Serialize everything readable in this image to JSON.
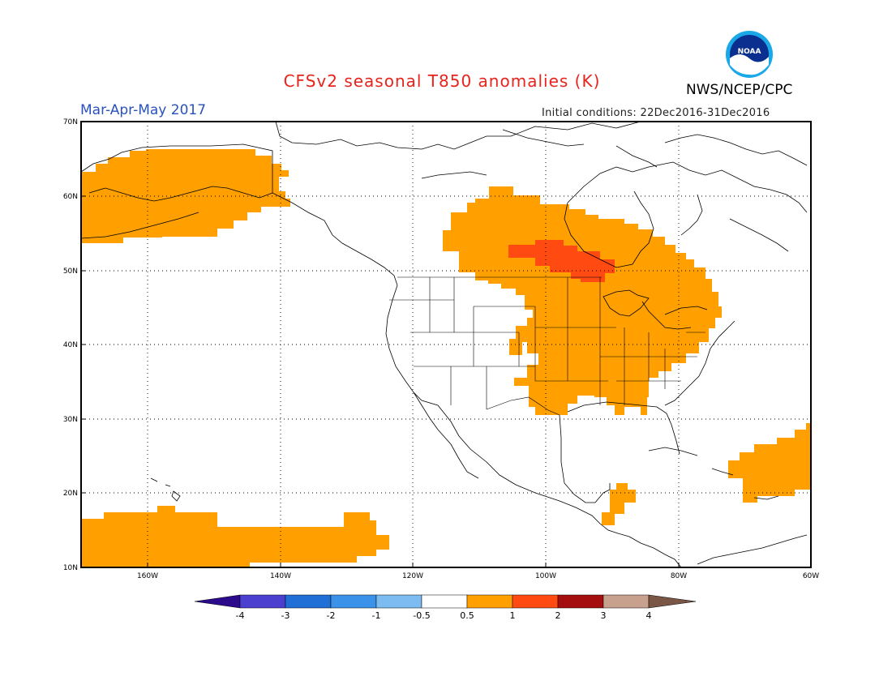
{
  "title": "CFSv2 seasonal T850 anomalies (K)",
  "season": "Mar-Apr-May 2017",
  "agency": "NWS/NCEP/CPC",
  "logo_text": "NOAA",
  "initial_conditions": "Initial conditions: 22Dec2016-31Dec2016",
  "map": {
    "projection": "lat-lon",
    "lon_range": [
      -170,
      -60
    ],
    "lat_range": [
      10,
      70
    ],
    "grid": "dotted",
    "lat_labels": [
      "70N",
      "60N",
      "50N",
      "40N",
      "30N",
      "20N",
      "10N"
    ],
    "lon_labels": [
      "160W",
      "140W",
      "120W",
      "100W",
      "80W",
      "60W"
    ]
  },
  "colorbar": {
    "labels": [
      "-4",
      "-3",
      "-2",
      "-1",
      "-0.5",
      "0.5",
      "1",
      "2",
      "3",
      "4"
    ],
    "colors": [
      "#2b0a8c",
      "#4a3fcf",
      "#1f6fd6",
      "#3a93e8",
      "#7dbcf0",
      "#ffffff",
      "#ffa000",
      "#ff4a12",
      "#a50e0e",
      "#c7a18e",
      "#7a5646"
    ]
  },
  "anomaly_regions": [
    {
      "name": "Alaska",
      "category": "0.5 to 1",
      "color": "#ffa000"
    },
    {
      "name": "Central Canada and central/eastern US",
      "category": "0.5 to 1",
      "color": "#ffa000"
    },
    {
      "name": "Central Canada core",
      "category": "1 to 2",
      "color": "#ff4a12"
    },
    {
      "name": "Central America",
      "category": "0.5 to 1",
      "color": "#ffa000"
    },
    {
      "name": "Western Atlantic",
      "category": "0.5 to 1",
      "color": "#ffa000"
    },
    {
      "name": "Subtropical Pacific",
      "category": "0.5 to 1",
      "color": "#ffa000"
    }
  ]
}
